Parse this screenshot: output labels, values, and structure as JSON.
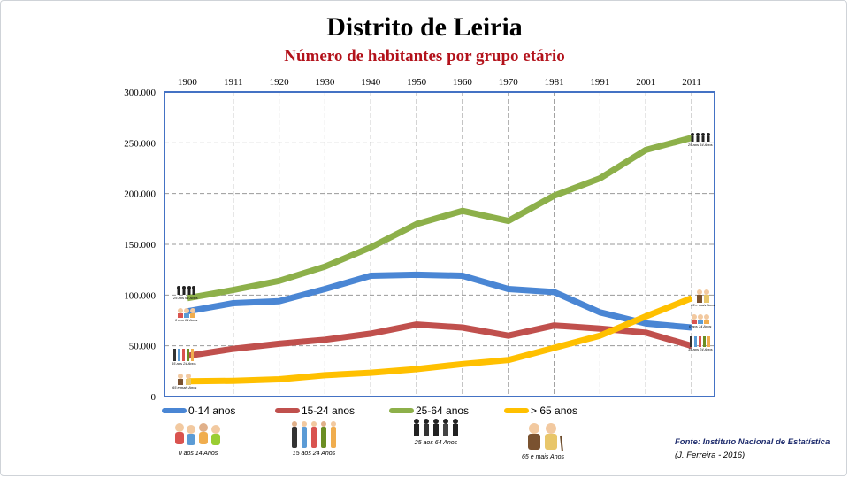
{
  "title": "Distrito de Leiria",
  "subtitle": "Número de habitantes por grupo etário",
  "chart_data": {
    "type": "line",
    "title": "Distrito de Leiria",
    "subtitle": "Número de habitantes por grupo etário",
    "x": [
      "1900",
      "1911",
      "1920",
      "1930",
      "1940",
      "1950",
      "1960",
      "1970",
      "1981",
      "1991",
      "2001",
      "2011"
    ],
    "y_ticks": [
      "0",
      "50.000",
      "100.000",
      "150.000",
      "200.000",
      "250.000",
      "300.000"
    ],
    "ylim": [
      0,
      300000
    ],
    "x_axis_position": "top",
    "grid": true,
    "legend_position": "bottom",
    "series": [
      {
        "name": "0-14 anos",
        "color": "#4a86d4",
        "values": [
          84000,
          92000,
          94000,
          106000,
          119000,
          120000,
          119000,
          106000,
          103000,
          83000,
          72000,
          68000
        ]
      },
      {
        "name": "15-24 anos",
        "color": "#c0504d",
        "values": [
          40000,
          47000,
          52000,
          56000,
          62000,
          71000,
          68000,
          60000,
          70000,
          67000,
          63000,
          50000
        ]
      },
      {
        "name": "25-64 anos",
        "color": "#8db04a",
        "values": [
          97000,
          105000,
          114000,
          128000,
          147000,
          170000,
          183000,
          173000,
          198000,
          215000,
          243000,
          255000
        ]
      },
      {
        "name": "> 65 anos",
        "color": "#ffc000",
        "values": [
          15000,
          15500,
          17000,
          21000,
          23500,
          27000,
          32000,
          36000,
          48000,
          60000,
          79000,
          97000
        ]
      }
    ]
  },
  "legend_pictures": [
    {
      "name": "0-14 pictogram",
      "label": "0 aos 14 Anos"
    },
    {
      "name": "15-24 pictogram",
      "label": "15 aos 24 Anos"
    },
    {
      "name": "25-64 pictogram",
      "label": "25 aos 64 Anos"
    },
    {
      "name": "65+ pictogram",
      "label": "65 e mais Anos"
    }
  ],
  "end_labels": {
    "left": [
      "25 aos 64 Anos",
      "0 aos 14 Anos",
      "15 aos 24 Anos",
      "65 e mais Anos"
    ],
    "right": [
      "25 aos 64 Anos",
      "65 e mais Anos",
      "0 aos 14 Anos",
      "15 aos 24 Anos"
    ]
  },
  "source": "Fonte: Instituto Nacional de Estatística",
  "credit": "(J. Ferreira - 2016)"
}
